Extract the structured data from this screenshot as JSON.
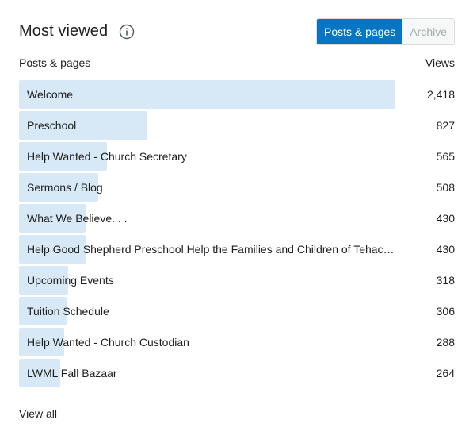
{
  "panel": {
    "title": "Most viewed",
    "info_icon": "info-icon",
    "toggle": {
      "options": [
        "Posts & pages",
        "Archive"
      ],
      "selected": "Posts & pages"
    }
  },
  "table": {
    "left_header": "Posts & pages",
    "right_header": "Views",
    "max_value": 2418,
    "rows": [
      {
        "label": "Welcome",
        "views": "2,418",
        "value": 2418
      },
      {
        "label": "Preschool",
        "views": "827",
        "value": 827
      },
      {
        "label": "Help Wanted - Church Secretary",
        "views": "565",
        "value": 565
      },
      {
        "label": "Sermons / Blog",
        "views": "508",
        "value": 508
      },
      {
        "label": "What We Believe. . .",
        "views": "430",
        "value": 430
      },
      {
        "label": "Help Good Shepherd Preschool Help the Families and Children of Tehac…",
        "views": "430",
        "value": 430
      },
      {
        "label": "Upcoming Events",
        "views": "318",
        "value": 318
      },
      {
        "label": "Tuition Schedule",
        "views": "306",
        "value": 306
      },
      {
        "label": "Help Wanted - Church Custodian",
        "views": "288",
        "value": 288
      },
      {
        "label": "LWML Fall Bazaar",
        "views": "264",
        "value": 264
      }
    ]
  },
  "footer": {
    "view_all_label": "View all"
  },
  "colors": {
    "accent": "#0675c4",
    "bar": "#d7e9f6"
  }
}
